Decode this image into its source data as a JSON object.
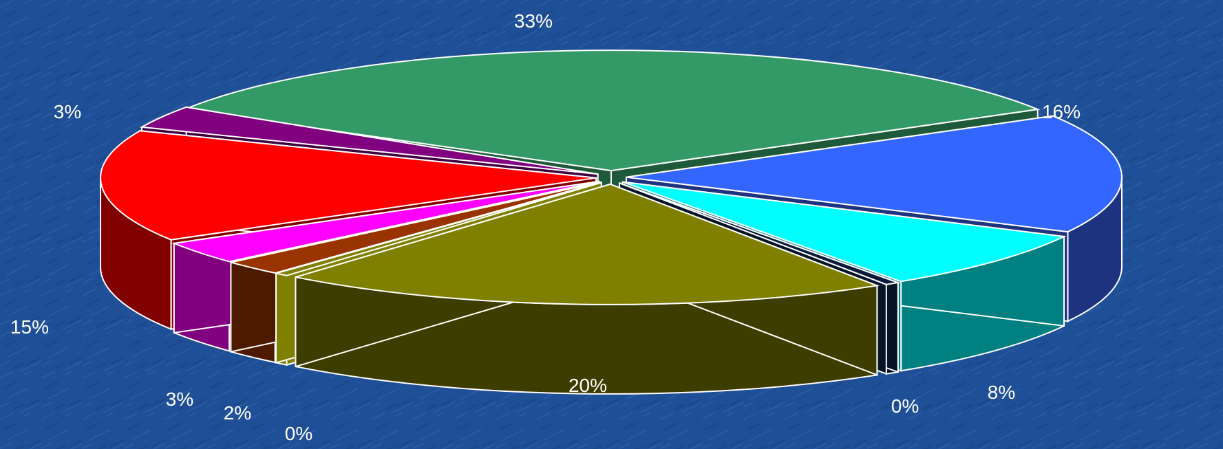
{
  "chart_data": {
    "type": "pie",
    "slices": [
      {
        "label": "33%",
        "value": 33,
        "color": "#339966",
        "side": "#1e5a3a"
      },
      {
        "label": "16%",
        "value": 16,
        "color": "#3366ff",
        "side": "#1e3380"
      },
      {
        "label": "8%",
        "value": 8,
        "color": "#00ffff",
        "side": "#008080"
      },
      {
        "label": "0%",
        "value": 0,
        "color": "#0b1b3b",
        "side": "#061426"
      },
      {
        "label": "20%",
        "value": 20,
        "color": "#808000",
        "side": "#3d3d00"
      },
      {
        "label": "0%",
        "value": 0,
        "color": "#808000",
        "side": "#808000"
      },
      {
        "label": "2%",
        "value": 2,
        "color": "#993300",
        "side": "#4d1a00"
      },
      {
        "label": "3%",
        "value": 3,
        "color": "#ff00ff",
        "side": "#800080"
      },
      {
        "label": "15%",
        "value": 15,
        "color": "#ff0000",
        "side": "#800000"
      },
      {
        "label": "3%",
        "value": 3,
        "color": "#800080",
        "side": "#400040"
      }
    ]
  }
}
